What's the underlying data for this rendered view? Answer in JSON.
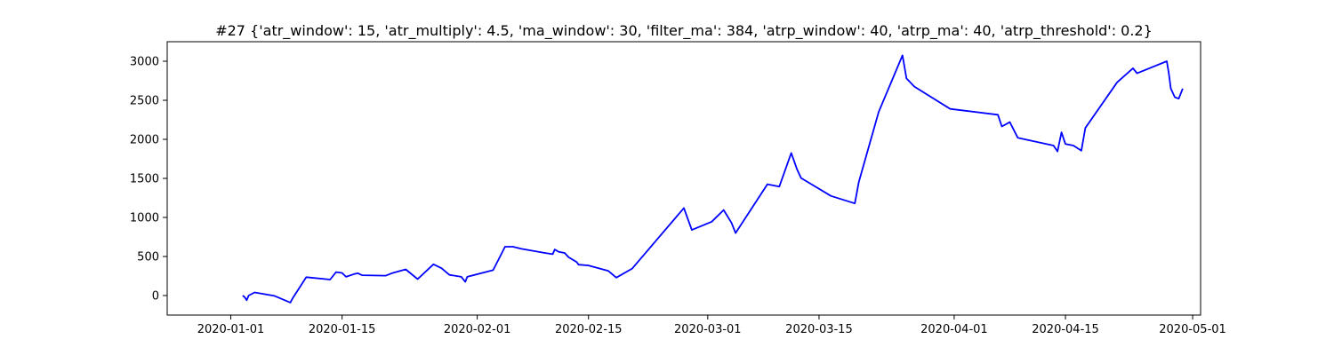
{
  "chart_data": {
    "type": "line",
    "title": "#27 {'atr_window': 15, 'atr_multiply': 4.5, 'ma_window': 30, 'filter_ma': 384, 'atrp_window': 40, 'atrp_ma': 40, 'atrp_threshold': 0.2}",
    "xlabel": "",
    "ylabel": "",
    "xlim": [
      "2019-12-24",
      "2020-05-02"
    ],
    "ylim": [
      -250,
      3250
    ],
    "grid": false,
    "x_ticks": [
      "2020-01-01",
      "2020-01-15",
      "2020-02-01",
      "2020-02-15",
      "2020-03-01",
      "2020-03-15",
      "2020-04-01",
      "2020-04-15",
      "2020-05-01"
    ],
    "y_ticks": [
      0,
      500,
      1000,
      1500,
      2000,
      2500,
      3000
    ],
    "series": [
      {
        "color": "#0000ff",
        "points": [
          [
            "2020-01-02T12:00",
            0
          ],
          [
            "2020-01-02T18:00",
            -20
          ],
          [
            "2020-01-03T00:00",
            -60
          ],
          [
            "2020-01-03T06:00",
            0
          ],
          [
            "2020-01-04T00:00",
            40
          ],
          [
            "2020-01-06T12:00",
            -5
          ],
          [
            "2020-01-08T12:00",
            -90
          ],
          [
            "2020-01-08T18:00",
            -40
          ],
          [
            "2020-01-10T12:00",
            235
          ],
          [
            "2020-01-13T12:00",
            205
          ],
          [
            "2020-01-14T06:00",
            300
          ],
          [
            "2020-01-15T00:00",
            290
          ],
          [
            "2020-01-15T12:00",
            240
          ],
          [
            "2020-01-16T12:00",
            275
          ],
          [
            "2020-01-17T00:00",
            285
          ],
          [
            "2020-01-17T12:00",
            260
          ],
          [
            "2020-01-20T12:00",
            255
          ],
          [
            "2020-01-21T06:00",
            285
          ],
          [
            "2020-01-22T12:00",
            320
          ],
          [
            "2020-01-23T00:00",
            335
          ],
          [
            "2020-01-24T12:00",
            210
          ],
          [
            "2020-01-26T12:00",
            400
          ],
          [
            "2020-01-27T12:00",
            350
          ],
          [
            "2020-01-28T12:00",
            265
          ],
          [
            "2020-01-30T00:00",
            240
          ],
          [
            "2020-01-30T12:00",
            175
          ],
          [
            "2020-01-30T18:00",
            240
          ],
          [
            "2020-02-03T00:00",
            325
          ],
          [
            "2020-02-04T12:00",
            625
          ],
          [
            "2020-02-05T12:00",
            625
          ],
          [
            "2020-02-06T12:00",
            600
          ],
          [
            "2020-02-09T12:00",
            545
          ],
          [
            "2020-02-10T12:00",
            530
          ],
          [
            "2020-02-10T18:00",
            590
          ],
          [
            "2020-02-11T06:00",
            560
          ],
          [
            "2020-02-12T00:00",
            545
          ],
          [
            "2020-02-12T12:00",
            490
          ],
          [
            "2020-02-13T12:00",
            430
          ],
          [
            "2020-02-13T18:00",
            395
          ],
          [
            "2020-02-15T00:00",
            385
          ],
          [
            "2020-02-17T12:00",
            315
          ],
          [
            "2020-02-18T12:00",
            230
          ],
          [
            "2020-02-20T12:00",
            345
          ],
          [
            "2020-02-27T00:00",
            1120
          ],
          [
            "2020-02-28T00:00",
            840
          ],
          [
            "2020-03-01T12:00",
            945
          ],
          [
            "2020-03-03T00:00",
            1095
          ],
          [
            "2020-03-04T00:00",
            930
          ],
          [
            "2020-03-04T12:00",
            800
          ],
          [
            "2020-03-08T12:00",
            1425
          ],
          [
            "2020-03-10T00:00",
            1395
          ],
          [
            "2020-03-11T12:00",
            1825
          ],
          [
            "2020-03-12T06:00",
            1610
          ],
          [
            "2020-03-12T18:00",
            1505
          ],
          [
            "2020-03-16T12:00",
            1275
          ],
          [
            "2020-03-19T12:00",
            1180
          ],
          [
            "2020-03-20T00:00",
            1450
          ],
          [
            "2020-03-22T12:00",
            2350
          ],
          [
            "2020-03-25T12:00",
            3075
          ],
          [
            "2020-03-26T00:00",
            2780
          ],
          [
            "2020-03-27T00:00",
            2675
          ],
          [
            "2020-03-31T12:00",
            2390
          ],
          [
            "2020-04-06T12:00",
            2315
          ],
          [
            "2020-04-07T00:00",
            2165
          ],
          [
            "2020-04-08T00:00",
            2220
          ],
          [
            "2020-04-09T00:00",
            2020
          ],
          [
            "2020-04-13T12:00",
            1920
          ],
          [
            "2020-04-14T00:00",
            1845
          ],
          [
            "2020-04-14T12:00",
            2090
          ],
          [
            "2020-04-15T00:00",
            1940
          ],
          [
            "2020-04-16T00:00",
            1920
          ],
          [
            "2020-04-17T00:00",
            1855
          ],
          [
            "2020-04-17T12:00",
            2145
          ],
          [
            "2020-04-21T12:00",
            2730
          ],
          [
            "2020-04-23T12:00",
            2910
          ],
          [
            "2020-04-24T00:00",
            2845
          ],
          [
            "2020-04-27T18:00",
            3000
          ],
          [
            "2020-04-28T00:00",
            2850
          ],
          [
            "2020-04-28T06:00",
            2650
          ],
          [
            "2020-04-28T18:00",
            2540
          ],
          [
            "2020-04-29T06:00",
            2520
          ],
          [
            "2020-04-29T18:00",
            2650
          ]
        ]
      }
    ]
  }
}
